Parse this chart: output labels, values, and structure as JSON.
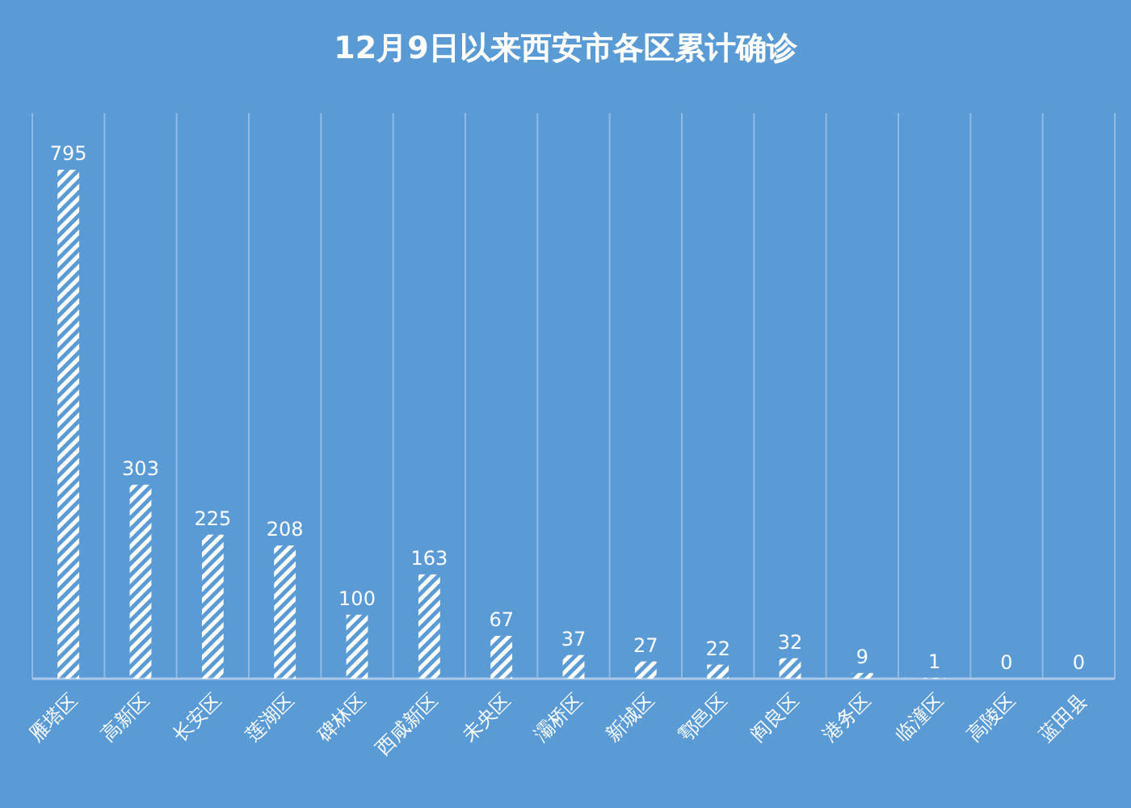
{
  "chart_data": {
    "type": "bar",
    "title": "12月9日以来西安市各区累计确诊",
    "categories": [
      "雁塔区",
      "高新区",
      "长安区",
      "莲湖区",
      "碑林区",
      "西咸新区",
      "未央区",
      "灞桥区",
      "新城区",
      "鄠邑区",
      "阎良区",
      "港务区",
      "临潼区",
      "高陵区",
      "蓝田县"
    ],
    "values": [
      795,
      303,
      225,
      208,
      100,
      163,
      67,
      37,
      27,
      22,
      32,
      9,
      1,
      0,
      0
    ],
    "color": "#ffffff",
    "data_labels": true,
    "grid": "x"
  }
}
